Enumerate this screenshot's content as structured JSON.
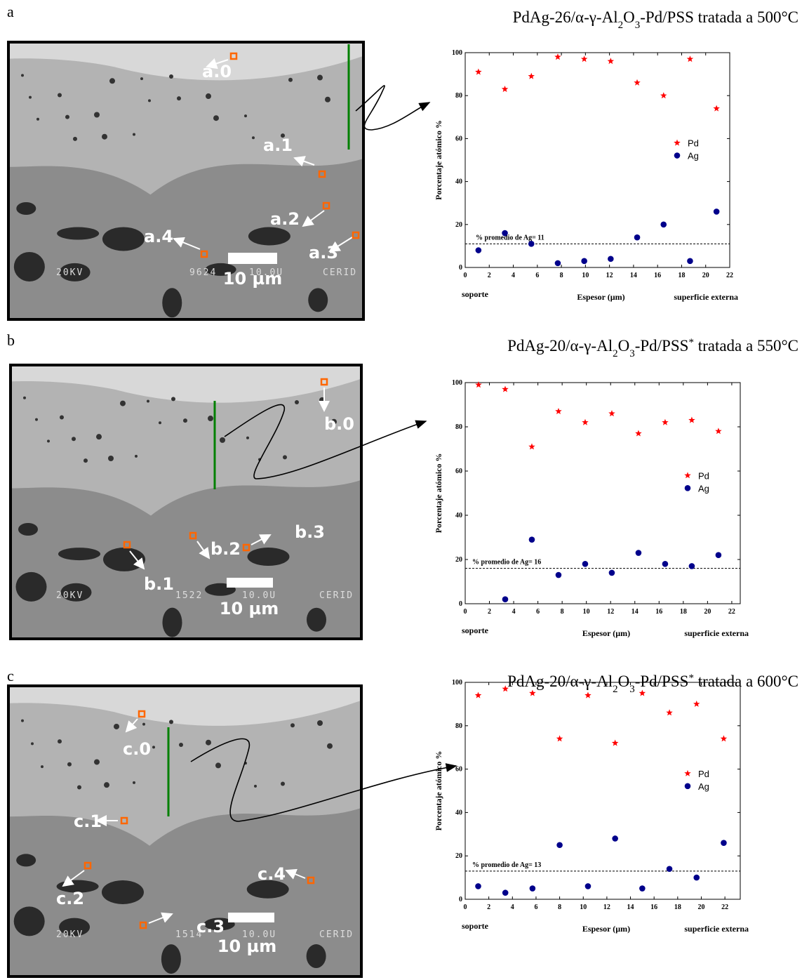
{
  "chart_data": [
    {
      "type": "scatter",
      "title": [
        {
          "text": "PdAg-26/α-γ-Al"
        },
        {
          "text": "2",
          "shift": "sub"
        },
        {
          "text": "O"
        },
        {
          "text": "3",
          "shift": "sub"
        },
        {
          "text": "-Pd/PSS tratada a 500°C"
        }
      ],
      "x_label": "Espesor (µm)",
      "y_label": "Porcentaje atómico %",
      "x_start_label": "soporte",
      "x_end_label": "superficie externa",
      "xlim": [
        0,
        22
      ],
      "ylim": [
        0,
        100
      ],
      "xticks": [
        0,
        2,
        4,
        6,
        8,
        10,
        12,
        14,
        16,
        18,
        20,
        22
      ],
      "yticks": [
        0,
        20,
        40,
        60,
        80,
        100
      ],
      "legend": "right",
      "series": [
        {
          "name": "Pd",
          "color": "#ff0000",
          "marker": "star",
          "x": [
            1.1,
            3.3,
            5.5,
            7.7,
            9.9,
            12.1,
            14.3,
            16.5,
            18.7,
            20.9
          ],
          "values": [
            91,
            83,
            89,
            98,
            97,
            96,
            86,
            80,
            97,
            74
          ]
        },
        {
          "name": "Ag",
          "color": "#00008b",
          "marker": "circle",
          "x": [
            1.1,
            3.3,
            5.5,
            7.7,
            9.9,
            12.1,
            14.3,
            16.5,
            18.7,
            20.9
          ],
          "values": [
            8,
            16,
            11,
            2,
            3,
            4,
            14,
            20,
            3,
            26
          ]
        }
      ],
      "ref_line": {
        "value": 11,
        "label": "% promedio de Ag= 11"
      }
    },
    {
      "type": "scatter",
      "title": [
        {
          "text": "PdAg-20/α-γ-Al"
        },
        {
          "text": "2",
          "shift": "sub"
        },
        {
          "text": "O"
        },
        {
          "text": "3",
          "shift": "sub"
        },
        {
          "text": "-Pd/PSS"
        },
        {
          "text": "*",
          "shift": "super"
        },
        {
          "text": " tratada a 550°C"
        }
      ],
      "x_label": "Espesor (µm)",
      "y_label": "Porcentaje atómico %",
      "x_start_label": "soporte",
      "x_end_label": "superficie externa",
      "xlim": [
        0,
        22.7
      ],
      "ylim": [
        0,
        100
      ],
      "xticks": [
        0,
        2,
        4,
        6,
        8,
        10,
        12,
        14,
        16,
        18,
        20,
        22
      ],
      "yticks": [
        0,
        20,
        40,
        60,
        80,
        100
      ],
      "legend": "right",
      "series": [
        {
          "name": "Pd",
          "color": "#ff0000",
          "marker": "star",
          "x": [
            1.1,
            3.3,
            5.5,
            7.7,
            9.9,
            12.1,
            14.3,
            16.5,
            18.7,
            20.9
          ],
          "values": [
            99,
            97,
            71,
            87,
            82,
            86,
            77,
            82,
            83,
            78
          ]
        },
        {
          "name": "Ag",
          "color": "#00008b",
          "marker": "circle",
          "x": [
            3.3,
            5.5,
            7.7,
            9.9,
            12.1,
            14.3,
            16.5,
            18.7,
            20.9
          ],
          "values": [
            2,
            29,
            13,
            18,
            14,
            23,
            18,
            17,
            22
          ]
        }
      ],
      "ref_line": {
        "value": 16,
        "label": "% promedio de Ag= 16"
      }
    },
    {
      "type": "scatter",
      "title": [
        {
          "text": "PdAg-20/α-γ-Al"
        },
        {
          "text": "2",
          "shift": "sub"
        },
        {
          "text": "O"
        },
        {
          "text": "3",
          "shift": "sub"
        },
        {
          "text": "-Pd/PSS"
        },
        {
          "text": "*",
          "shift": "super"
        },
        {
          "text": " tratada a 600°C"
        }
      ],
      "x_label": "Espesor (µm)",
      "y_label": "Porcentaje atómico %",
      "x_start_label": "soporte",
      "x_end_label": "superficie externa",
      "xlim": [
        0,
        23.3
      ],
      "ylim": [
        0,
        100
      ],
      "xticks": [
        0,
        2,
        4,
        6,
        8,
        10,
        12,
        14,
        16,
        18,
        20,
        22
      ],
      "yticks": [
        0,
        20,
        40,
        60,
        80,
        100
      ],
      "legend": "right",
      "series": [
        {
          "name": "Pd",
          "color": "#ff0000",
          "marker": "star",
          "x": [
            1.1,
            3.4,
            5.7,
            8.0,
            10.4,
            12.7,
            15.0,
            17.3,
            19.6,
            21.9
          ],
          "values": [
            94,
            97,
            95,
            74,
            94,
            72,
            95,
            86,
            90,
            74
          ]
        },
        {
          "name": "Ag",
          "color": "#00008b",
          "marker": "circle",
          "x": [
            1.1,
            3.4,
            5.7,
            8.0,
            10.4,
            12.7,
            15.0,
            17.3,
            19.6,
            21.9
          ],
          "values": [
            6,
            3,
            5,
            25,
            6,
            28,
            5,
            14,
            10,
            26
          ]
        }
      ],
      "ref_line": {
        "value": 13,
        "label": "% promedio de Ag= 13"
      }
    }
  ],
  "panels": [
    {
      "letter": "a",
      "image_labels": [
        "a.0",
        "a.1",
        "a.2",
        "a.3",
        "a.4"
      ],
      "scale_bar": "10 µm",
      "micrograph_text": [
        "20KV",
        "9624",
        "10.0U",
        "CERID"
      ]
    },
    {
      "letter": "b",
      "image_labels": [
        "b.0",
        "b.1",
        "b.2",
        "b.3"
      ],
      "scale_bar": "10 µm",
      "micrograph_text": [
        "20KV",
        "1522",
        "10.0U",
        "CERID"
      ]
    },
    {
      "letter": "c",
      "image_labels": [
        "c.0",
        "c.1",
        "c.2",
        "c.3",
        "c.4"
      ],
      "scale_bar": "10 µm",
      "micrograph_text": [
        "20KV",
        "1514",
        "10.0U",
        "CERID"
      ]
    }
  ]
}
